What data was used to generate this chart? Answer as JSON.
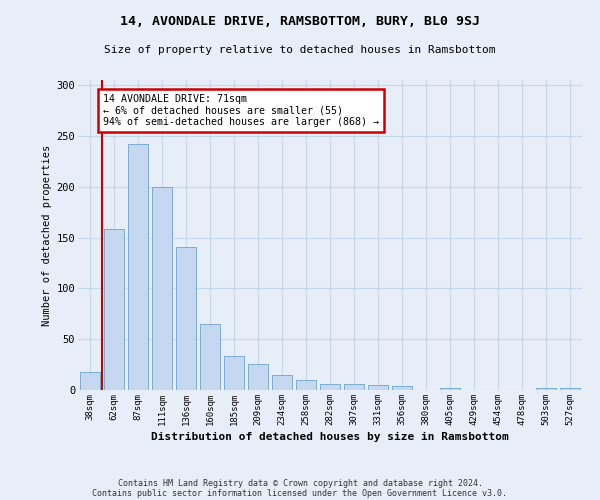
{
  "title1": "14, AVONDALE DRIVE, RAMSBOTTOM, BURY, BL0 9SJ",
  "title2": "Size of property relative to detached houses in Ramsbottom",
  "xlabel": "Distribution of detached houses by size in Ramsbottom",
  "ylabel": "Number of detached properties",
  "footnote1": "Contains HM Land Registry data © Crown copyright and database right 2024.",
  "footnote2": "Contains public sector information licensed under the Open Government Licence v3.0.",
  "categories": [
    "38sqm",
    "62sqm",
    "87sqm",
    "111sqm",
    "136sqm",
    "160sqm",
    "185sqm",
    "209sqm",
    "234sqm",
    "258sqm",
    "282sqm",
    "307sqm",
    "331sqm",
    "356sqm",
    "380sqm",
    "405sqm",
    "429sqm",
    "454sqm",
    "478sqm",
    "503sqm",
    "527sqm"
  ],
  "values": [
    18,
    158,
    242,
    200,
    141,
    65,
    33,
    26,
    15,
    10,
    6,
    6,
    5,
    4,
    0,
    2,
    0,
    0,
    0,
    2,
    2
  ],
  "bar_color": "#c5d8f0",
  "bar_edge_color": "#7aadd4",
  "property_line_x": 0.5,
  "annotation_text": "14 AVONDALE DRIVE: 71sqm\n← 6% of detached houses are smaller (55)\n94% of semi-detached houses are larger (868) →",
  "annotation_box_color": "#ffffff",
  "annotation_box_edge": "#cc0000",
  "vline_color": "#cc0000",
  "grid_color": "#c8d8ec",
  "bg_color": "#e8eef8",
  "ylim": [
    0,
    305
  ],
  "yticks": [
    0,
    50,
    100,
    150,
    200,
    250,
    300
  ]
}
